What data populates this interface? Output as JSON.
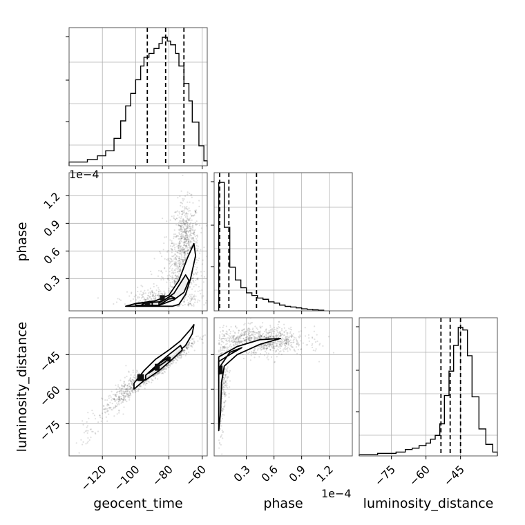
{
  "chart_data": {
    "type": "corner",
    "parameters": [
      "geocent_time",
      "phase",
      "luminosity_distance"
    ],
    "labels": {
      "geocent_time": "geocent_time",
      "phase": "phase",
      "luminosity_distance": "luminosity_distance"
    },
    "ranges": {
      "geocent_time": [
        -140,
        -57
      ],
      "phase": [
        -5e-06,
        0.000145
      ],
      "luminosity_distance": [
        -89,
        -29
      ]
    },
    "ticks": {
      "geocent_time": [
        -120,
        -100,
        -80,
        -60
      ],
      "phase": [
        3e-05,
        6e-05,
        9e-05,
        0.00012
      ],
      "luminosity_distance": [
        -75,
        -60,
        -45
      ]
    },
    "tick_labels": {
      "geocent_time": [
        "−120",
        "−100",
        "−80",
        "−60"
      ],
      "phase": [
        "0.3",
        "0.6",
        "0.9",
        "1.2"
      ],
      "luminosity_distance": [
        "−75",
        "−60",
        "−45"
      ]
    },
    "offset_text": "1e−4",
    "quantiles": {
      "geocent_time": [
        -93,
        -82,
        -71
      ],
      "phase": [
        1e-06,
        1.1e-05,
        4.1e-05
      ],
      "luminosity_distance": [
        -53.5,
        -49.5,
        -45
      ]
    },
    "histograms": {
      "geocent_time": {
        "bin_edges": [
          -140,
          -134,
          -129,
          -123,
          -118,
          -113,
          -109,
          -106,
          -103,
          -100,
          -97,
          -95,
          -92,
          -89,
          -86,
          -84,
          -81,
          -79,
          -76,
          -74,
          -71,
          -68,
          -66,
          -62,
          -59,
          -57
        ],
        "counts": [
          3,
          3,
          5,
          8,
          12,
          22,
          36,
          48,
          58,
          69,
          80,
          87,
          90,
          94,
          98,
          103,
          100,
          97,
          90,
          80,
          66,
          52,
          35,
          16,
          4
        ]
      },
      "phase": {
        "bin_edges": [
          0,
          6e-06,
          1.2e-05,
          1.8e-05,
          2.4e-05,
          3e-05,
          3.6e-05,
          4.2e-05,
          4.8e-05,
          5.4e-05,
          6e-05,
          6.6e-05,
          7.2e-05,
          7.8e-05,
          8.4e-05,
          9e-05,
          9.6e-05,
          0.000102,
          0.000108,
          0.000114
        ],
        "counts": [
          100,
          65,
          34,
          24,
          18,
          14,
          12,
          10,
          9,
          7,
          6,
          4.5,
          3.5,
          3,
          2.3,
          1.6,
          1.1,
          0.8,
          0.5
        ]
      },
      "luminosity_distance": {
        "bin_edges": [
          -89,
          -85,
          -81,
          -77,
          -73,
          -69,
          -66,
          -63,
          -60,
          -58,
          -56,
          -54,
          -52,
          -50,
          -48,
          -46,
          -44,
          -42,
          -40,
          -37,
          -34,
          -31,
          -29
        ],
        "counts": [
          1,
          1,
          2,
          2,
          3,
          5,
          6,
          8,
          10,
          13,
          16,
          25,
          47,
          66,
          86,
          100,
          98,
          78,
          46,
          21,
          9,
          3
        ]
      }
    },
    "scatter": {
      "geocent_time|phase": {
        "density": [
          {
            "x": -70,
            "y": 7e-05,
            "sx": 4,
            "sy": 2.2e-05,
            "n": 620
          },
          {
            "x": -73,
            "y": 3e-05,
            "sx": 6,
            "sy": 2e-05,
            "n": 420
          },
          {
            "x": -85,
            "y": 8e-06,
            "sx": 10,
            "sy": 6e-06,
            "n": 260
          }
        ],
        "contours": [
          [
            [
              -106,
              0.0
            ],
            [
              -100,
              3e-06
            ],
            [
              -88,
              6e-06
            ],
            [
              -80,
              1.2e-05
            ],
            [
              -74,
              2.8e-05
            ],
            [
              -69,
              5.2e-05
            ],
            [
              -65,
              6.8e-05
            ],
            [
              -64,
              5.5e-05
            ],
            [
              -67,
              3e-05
            ],
            [
              -70,
              1.3e-05
            ],
            [
              -74,
              2e-06
            ],
            [
              -78,
              0.0
            ]
          ],
          [
            [
              -100,
              3e-06
            ],
            [
              -84,
              5e-06
            ],
            [
              -77,
              1.4e-05
            ],
            [
              -70,
              3.4e-05
            ],
            [
              -68,
              2.8e-05
            ],
            [
              -71,
              1.5e-05
            ],
            [
              -77,
              7e-06
            ],
            [
              -86,
              1e-06
            ],
            [
              -100,
              1e-06
            ]
          ],
          [
            [
              -86,
              1.2e-06
            ],
            [
              -80,
              8e-06
            ],
            [
              -76,
              8.5e-06
            ],
            [
              -79,
              1.1e-05
            ],
            [
              -86,
              3.5e-06
            ]
          ],
          [
            [
              -97,
              8e-07
            ],
            [
              -94,
              4e-06
            ],
            [
              -90,
              4e-06
            ],
            [
              -90,
              1e-06
            ]
          ]
        ],
        "filled": [
          {
            "x": -93,
            "y": 2.5e-06,
            "w": 3,
            "h": 4e-06
          },
          {
            "x": -84,
            "y": 9e-06,
            "w": 3,
            "h": 6e-06
          }
        ]
      },
      "geocent_time|luminosity_distance": {
        "density": [
          {
            "x": -85,
            "y": -50,
            "sx": 9,
            "sy": 5,
            "n": 900,
            "rho": 0.95
          },
          {
            "x": -108,
            "y": -62,
            "sx": 6,
            "sy": 5,
            "n": 250,
            "rho": 0.8
          },
          {
            "x": -126,
            "y": -76,
            "sx": 5,
            "sy": 5,
            "n": 40,
            "rho": 0.7
          }
        ],
        "contours": [
          [
            [
              -101,
              -57.5
            ],
            [
              -95,
              -52
            ],
            [
              -88,
              -47
            ],
            [
              -80,
              -43
            ],
            [
              -73,
              -39
            ],
            [
              -67,
              -34
            ],
            [
              -65,
              -32
            ],
            [
              -66,
              -36
            ],
            [
              -70,
              -41
            ],
            [
              -78,
              -46
            ],
            [
              -85,
              -50
            ],
            [
              -93,
              -55
            ],
            [
              -101,
              -60
            ]
          ],
          [
            [
              -94,
              -54
            ],
            [
              -88,
              -50
            ],
            [
              -80,
              -45
            ],
            [
              -73,
              -41
            ],
            [
              -72,
              -43
            ],
            [
              -78,
              -47
            ],
            [
              -86,
              -52
            ],
            [
              -94,
              -56
            ]
          ],
          [
            [
              -92,
              -53
            ],
            [
              -86,
              -49
            ],
            [
              -80,
              -46
            ],
            [
              -82,
              -48
            ],
            [
              -88,
              -51
            ]
          ]
        ],
        "filled": [
          {
            "x": -97,
            "y": -55,
            "w": 4,
            "h": 3
          },
          {
            "x": -87,
            "y": -50.5,
            "w": 3,
            "h": 3
          },
          {
            "x": -80,
            "y": -47,
            "w": 2,
            "h": 2
          }
        ]
      },
      "phase|luminosity_distance": {
        "density": [
          {
            "x": 4.5e-05,
            "y": -39,
            "sx": 2.5e-05,
            "sy": 3,
            "n": 900
          },
          {
            "x": 2e-06,
            "y": -55,
            "sx": 4e-06,
            "sy": 6,
            "n": 350
          },
          {
            "x": 2e-06,
            "y": -72,
            "sx": 2e-06,
            "sy": 7,
            "n": 60
          }
        ],
        "contours": [
          [
            [
              0.0,
              -46
            ],
            [
              2e-05,
              -41.5
            ],
            [
              4.5e-05,
              -38.5
            ],
            [
              6.7e-05,
              -38
            ],
            [
              4.5e-05,
              -40.5
            ],
            [
              2e-05,
              -45
            ],
            [
              6e-06,
              -50
            ],
            [
              3e-06,
              -57
            ],
            [
              2e-06,
              -70
            ],
            [
              0.0,
              -78
            ]
          ],
          [
            [
              0.0,
              -48
            ],
            [
              1.2e-05,
              -45
            ],
            [
              2.5e-05,
              -42
            ],
            [
              1.2e-05,
              -44
            ],
            [
              0.0,
              -51
            ]
          ],
          [
            [
              0.0,
              -51
            ],
            [
              3.5e-06,
              -50
            ],
            [
              3.5e-06,
              -53
            ],
            [
              0.0,
              -53.5
            ]
          ]
        ],
        "filled": [
          {
            "x": 2e-06,
            "y": -52,
            "w": 3e-06,
            "h": 3
          }
        ]
      }
    },
    "grid": true
  }
}
